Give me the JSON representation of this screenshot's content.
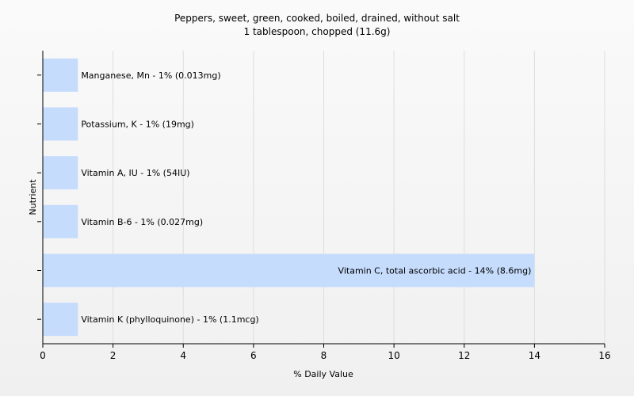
{
  "chart_data": {
    "type": "bar",
    "orientation": "horizontal",
    "title": "Peppers, sweet, green, cooked, boiled, drained, without salt",
    "subtitle": "1 tablespoon, chopped (11.6g)",
    "xlabel": "% Daily Value",
    "ylabel": "Nutrient",
    "xlim": [
      0,
      16
    ],
    "xticks": [
      "0",
      "2",
      "4",
      "6",
      "8",
      "10",
      "12",
      "14",
      "16"
    ],
    "grid": true,
    "bar_color": "#c6dcfc",
    "categories": [
      "Manganese, Mn",
      "Potassium, K",
      "Vitamin A, IU",
      "Vitamin B-6",
      "Vitamin C, total ascorbic acid",
      "Vitamin K (phylloquinone)"
    ],
    "values": [
      1,
      1,
      1,
      1,
      14,
      1
    ],
    "bar_labels": [
      "Manganese, Mn - 1% (0.013mg)",
      "Potassium, K - 1% (19mg)",
      "Vitamin A, IU - 1% (54IU)",
      "Vitamin B-6 - 1% (0.027mg)",
      "Vitamin C, total ascorbic acid - 14% (8.6mg)",
      "Vitamin K (phylloquinone) - 1% (1.1mcg)"
    ]
  }
}
